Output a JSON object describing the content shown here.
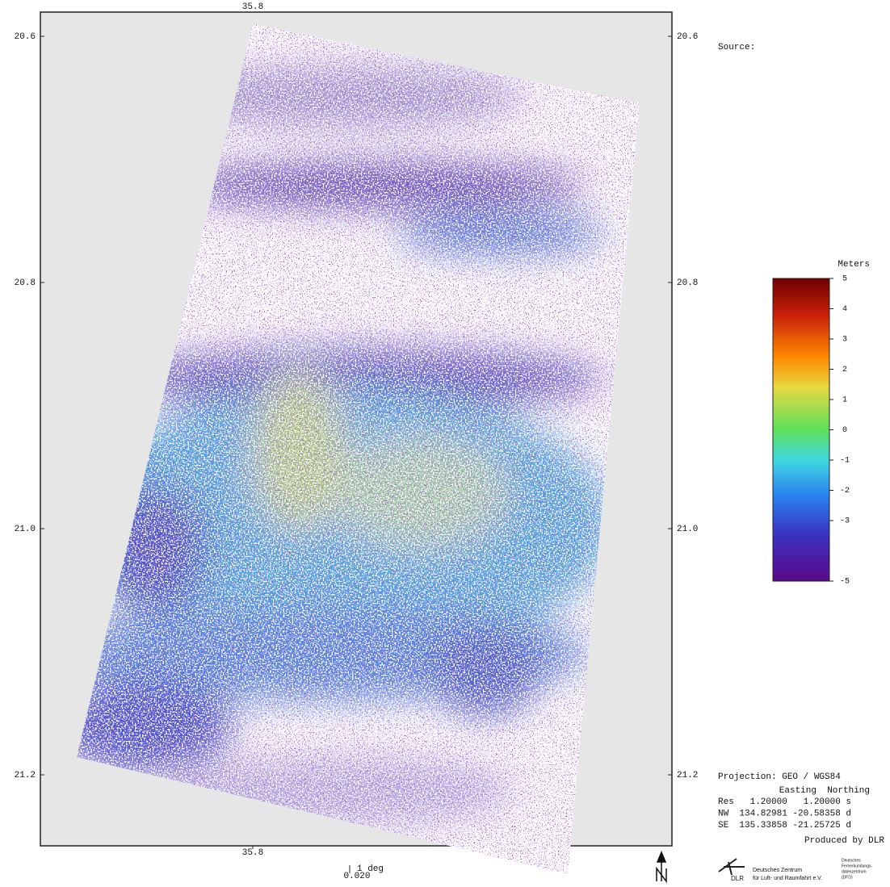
{
  "map": {
    "top_lon_label": "35.8",
    "bottom_lon_label": "35.8",
    "lat_ticks": [
      {
        "value": 20.6,
        "label": "20.6"
      },
      {
        "value": 20.8,
        "label": "20.8"
      },
      {
        "value": 21,
        "label": "21.0"
      },
      {
        "value": 21.2,
        "label": "21.2"
      }
    ],
    "scale_bar": {
      "label": "1 deg",
      "value": "0.020"
    }
  },
  "colorbar": {
    "title": "Meters",
    "range": [
      -5,
      5
    ],
    "ticks": [
      5,
      4,
      3,
      2,
      1,
      0,
      -1,
      -2,
      -3,
      -5
    ]
  },
  "info": {
    "source": "Source:",
    "projection": "Projection: GEO / WGS84",
    "header": "Easting  Northing",
    "rows": [
      "Res   1.20000   1.20000 s",
      "NW  134.82981 -20.58358 d",
      "SE  135.33858 -21.25725 d"
    ],
    "produced": "Produced by DLR"
  },
  "logo": {
    "dlr": "DLR",
    "line1": "Deutsches Zentrum",
    "line2": "für Luft- und Raumfahrt e.V.",
    "dfd": [
      "Deutsches",
      "Fernerkundungs-",
      "datenzentrum",
      "(DFD)"
    ]
  }
}
